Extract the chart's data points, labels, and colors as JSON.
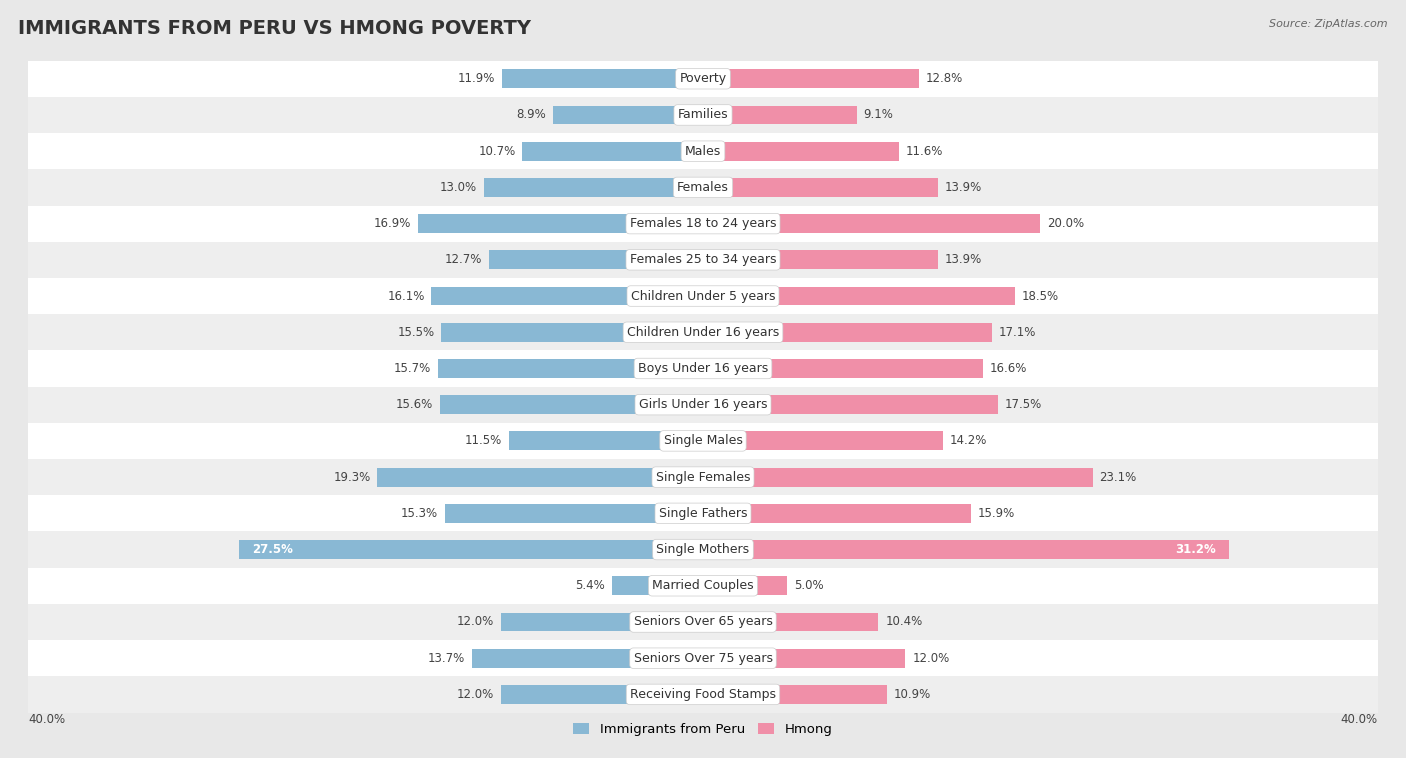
{
  "title": "IMMIGRANTS FROM PERU VS HMONG POVERTY",
  "source": "Source: ZipAtlas.com",
  "categories": [
    "Poverty",
    "Families",
    "Males",
    "Females",
    "Females 18 to 24 years",
    "Females 25 to 34 years",
    "Children Under 5 years",
    "Children Under 16 years",
    "Boys Under 16 years",
    "Girls Under 16 years",
    "Single Males",
    "Single Females",
    "Single Fathers",
    "Single Mothers",
    "Married Couples",
    "Seniors Over 65 years",
    "Seniors Over 75 years",
    "Receiving Food Stamps"
  ],
  "peru_values": [
    11.9,
    8.9,
    10.7,
    13.0,
    16.9,
    12.7,
    16.1,
    15.5,
    15.7,
    15.6,
    11.5,
    19.3,
    15.3,
    27.5,
    5.4,
    12.0,
    13.7,
    12.0
  ],
  "hmong_values": [
    12.8,
    9.1,
    11.6,
    13.9,
    20.0,
    13.9,
    18.5,
    17.1,
    16.6,
    17.5,
    14.2,
    23.1,
    15.9,
    31.2,
    5.0,
    10.4,
    12.0,
    10.9
  ],
  "peru_color": "#89b8d4",
  "hmong_color": "#f08fa8",
  "peru_label": "Immigrants from Peru",
  "hmong_label": "Hmong",
  "x_max": 40.0,
  "background_color": "#e8e8e8",
  "row_colors": [
    "#ffffff",
    "#eeeeee"
  ],
  "title_fontsize": 14,
  "label_fontsize": 9,
  "value_fontsize": 8.5,
  "bar_height": 0.52
}
